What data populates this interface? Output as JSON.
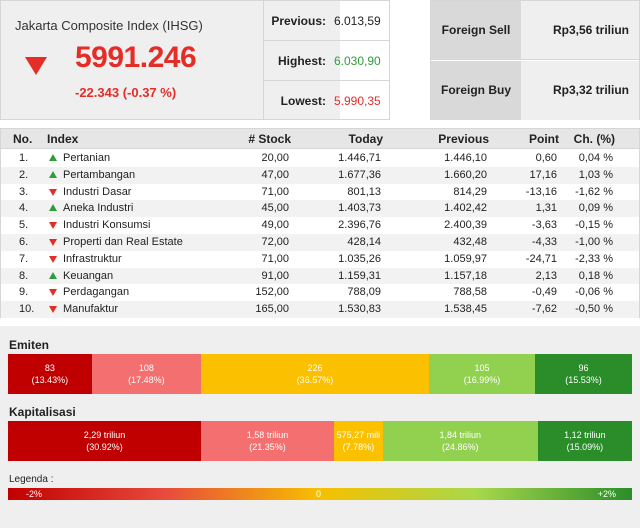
{
  "index": {
    "name": "Jakarta Composite Index (IHSG)",
    "value": "5991.246",
    "change": "-22.343 (-0.37 %)",
    "direction": "down"
  },
  "stats": [
    {
      "label": "Previous:",
      "value": "6.013,59",
      "color": "#222222"
    },
    {
      "label": "Highest:",
      "value": "6.030,90",
      "color": "#2e9d3a"
    },
    {
      "label": "Lowest:",
      "value": "5.990,35",
      "color": "#e52d27"
    }
  ],
  "foreign": [
    {
      "label": "Foreign Sell",
      "value": "Rp3,56 triliun"
    },
    {
      "label": "Foreign Buy",
      "value": "Rp3,32 triliun"
    }
  ],
  "table": {
    "headers": {
      "no": "No.",
      "index": "Index",
      "stock": "# Stock",
      "today": "Today",
      "previous": "Previous",
      "point": "Point",
      "ch": "Ch. (%)"
    },
    "rows": [
      {
        "no": "1.",
        "trend": "up",
        "name": "Pertanian",
        "stock": "20,00",
        "today": "1.446,71",
        "previous": "1.446,10",
        "point": "0,60",
        "ch": "0,04 %"
      },
      {
        "no": "2.",
        "trend": "up",
        "name": "Pertambangan",
        "stock": "47,00",
        "today": "1.677,36",
        "previous": "1.660,20",
        "point": "17,16",
        "ch": "1,03 %"
      },
      {
        "no": "3.",
        "trend": "down",
        "name": "Industri Dasar",
        "stock": "71,00",
        "today": "801,13",
        "previous": "814,29",
        "point": "-13,16",
        "ch": "-1,62 %"
      },
      {
        "no": "4.",
        "trend": "up",
        "name": "Aneka Industri",
        "stock": "45,00",
        "today": "1.403,73",
        "previous": "1.402,42",
        "point": "1,31",
        "ch": "0,09 %"
      },
      {
        "no": "5.",
        "trend": "down",
        "name": "Industri Konsumsi",
        "stock": "49,00",
        "today": "2.396,76",
        "previous": "2.400,39",
        "point": "-3,63",
        "ch": "-0,15 %"
      },
      {
        "no": "6.",
        "trend": "down",
        "name": "Properti dan Real Estate",
        "stock": "72,00",
        "today": "428,14",
        "previous": "432,48",
        "point": "-4,33",
        "ch": "-1,00 %"
      },
      {
        "no": "7.",
        "trend": "down",
        "name": "Infrastruktur",
        "stock": "71,00",
        "today": "1.035,26",
        "previous": "1.059,97",
        "point": "-24,71",
        "ch": "-2,33 %"
      },
      {
        "no": "8.",
        "trend": "up",
        "name": "Keuangan",
        "stock": "91,00",
        "today": "1.159,31",
        "previous": "1.157,18",
        "point": "2,13",
        "ch": "0,18 %"
      },
      {
        "no": "9.",
        "trend": "down",
        "name": "Perdagangan",
        "stock": "152,00",
        "today": "788,09",
        "previous": "788,58",
        "point": "-0,49",
        "ch": "-0,06 %"
      },
      {
        "no": "10.",
        "trend": "down",
        "name": "Manufaktur",
        "stock": "165,00",
        "today": "1.530,83",
        "previous": "1.538,45",
        "point": "-7,62",
        "ch": "-0,50 %"
      }
    ]
  },
  "emiten": {
    "title": "Emiten",
    "segments": [
      {
        "value": "83",
        "pct": "(13.43%)",
        "share": 13.43,
        "color": "#c00000"
      },
      {
        "value": "108",
        "pct": "(17.48%)",
        "share": 17.48,
        "color": "#f47070"
      },
      {
        "value": "226",
        "pct": "(36.57%)",
        "share": 36.57,
        "color": "#fbc000"
      },
      {
        "value": "105",
        "pct": "(16.99%)",
        "share": 16.99,
        "color": "#92d050"
      },
      {
        "value": "96",
        "pct": "(15.53%)",
        "share": 15.53,
        "color": "#2a8d2a"
      }
    ]
  },
  "kapitalisasi": {
    "title": "Kapitalisasi",
    "segments": [
      {
        "value": "2,29 triliun",
        "pct": "(30.92%)",
        "share": 30.92,
        "color": "#c00000"
      },
      {
        "value": "1,58 triliun",
        "pct": "(21.35%)",
        "share": 21.35,
        "color": "#f47070"
      },
      {
        "value": "575,27 mili",
        "pct": "(7.78%)",
        "share": 7.78,
        "color": "#fbc000"
      },
      {
        "value": "1,84 triliun",
        "pct": "(24.86%)",
        "share": 24.86,
        "color": "#92d050"
      },
      {
        "value": "1,12 triliun",
        "pct": "(15.09%)",
        "share": 15.09,
        "color": "#2a8d2a"
      }
    ]
  },
  "legend": {
    "label": "Legenda :",
    "min": "-2%",
    "mid": "0",
    "max": "+2%"
  }
}
